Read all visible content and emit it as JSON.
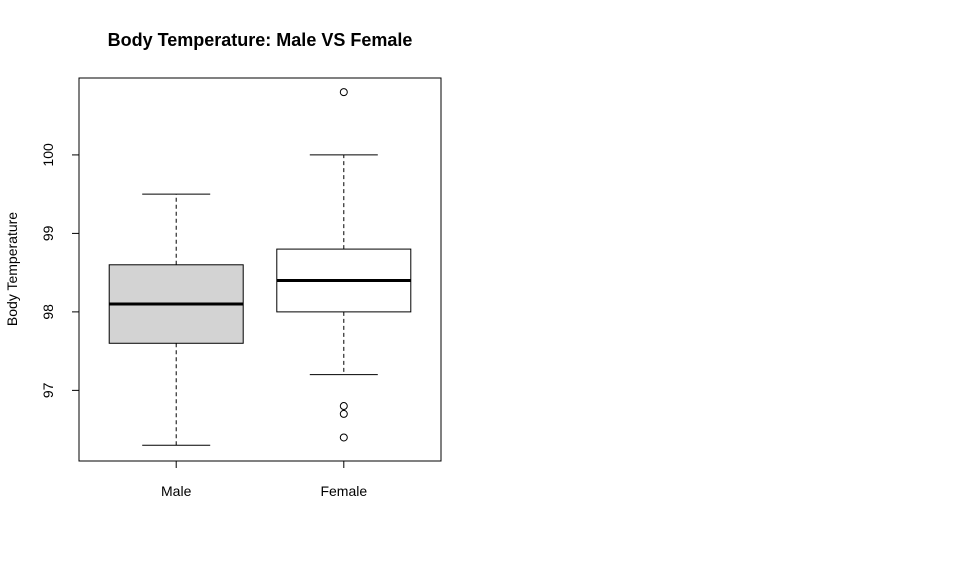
{
  "chart_data": {
    "type": "boxplot",
    "title": "Body Temperature: Male VS Female",
    "xlabel": "",
    "ylabel": "Body Temperature",
    "ylim": [
      96.1,
      100.98
    ],
    "yticks": [
      "97",
      "98",
      "99",
      "100"
    ],
    "categories": [
      "Male",
      "Female"
    ],
    "boxes": [
      {
        "name": "Male",
        "whisker_low": 96.3,
        "q1": 97.6,
        "median": 98.1,
        "q3": 98.6,
        "whisker_high": 99.5,
        "outliers": [],
        "fill": "#d3d3d3"
      },
      {
        "name": "Female",
        "whisker_low": 97.2,
        "q1": 98.0,
        "median": 98.4,
        "q3": 98.8,
        "whisker_high": 100.0,
        "outliers": [
          96.4,
          96.7,
          96.8,
          100.8
        ],
        "fill": "#ffffff"
      }
    ],
    "grid": false,
    "legend": "none"
  }
}
